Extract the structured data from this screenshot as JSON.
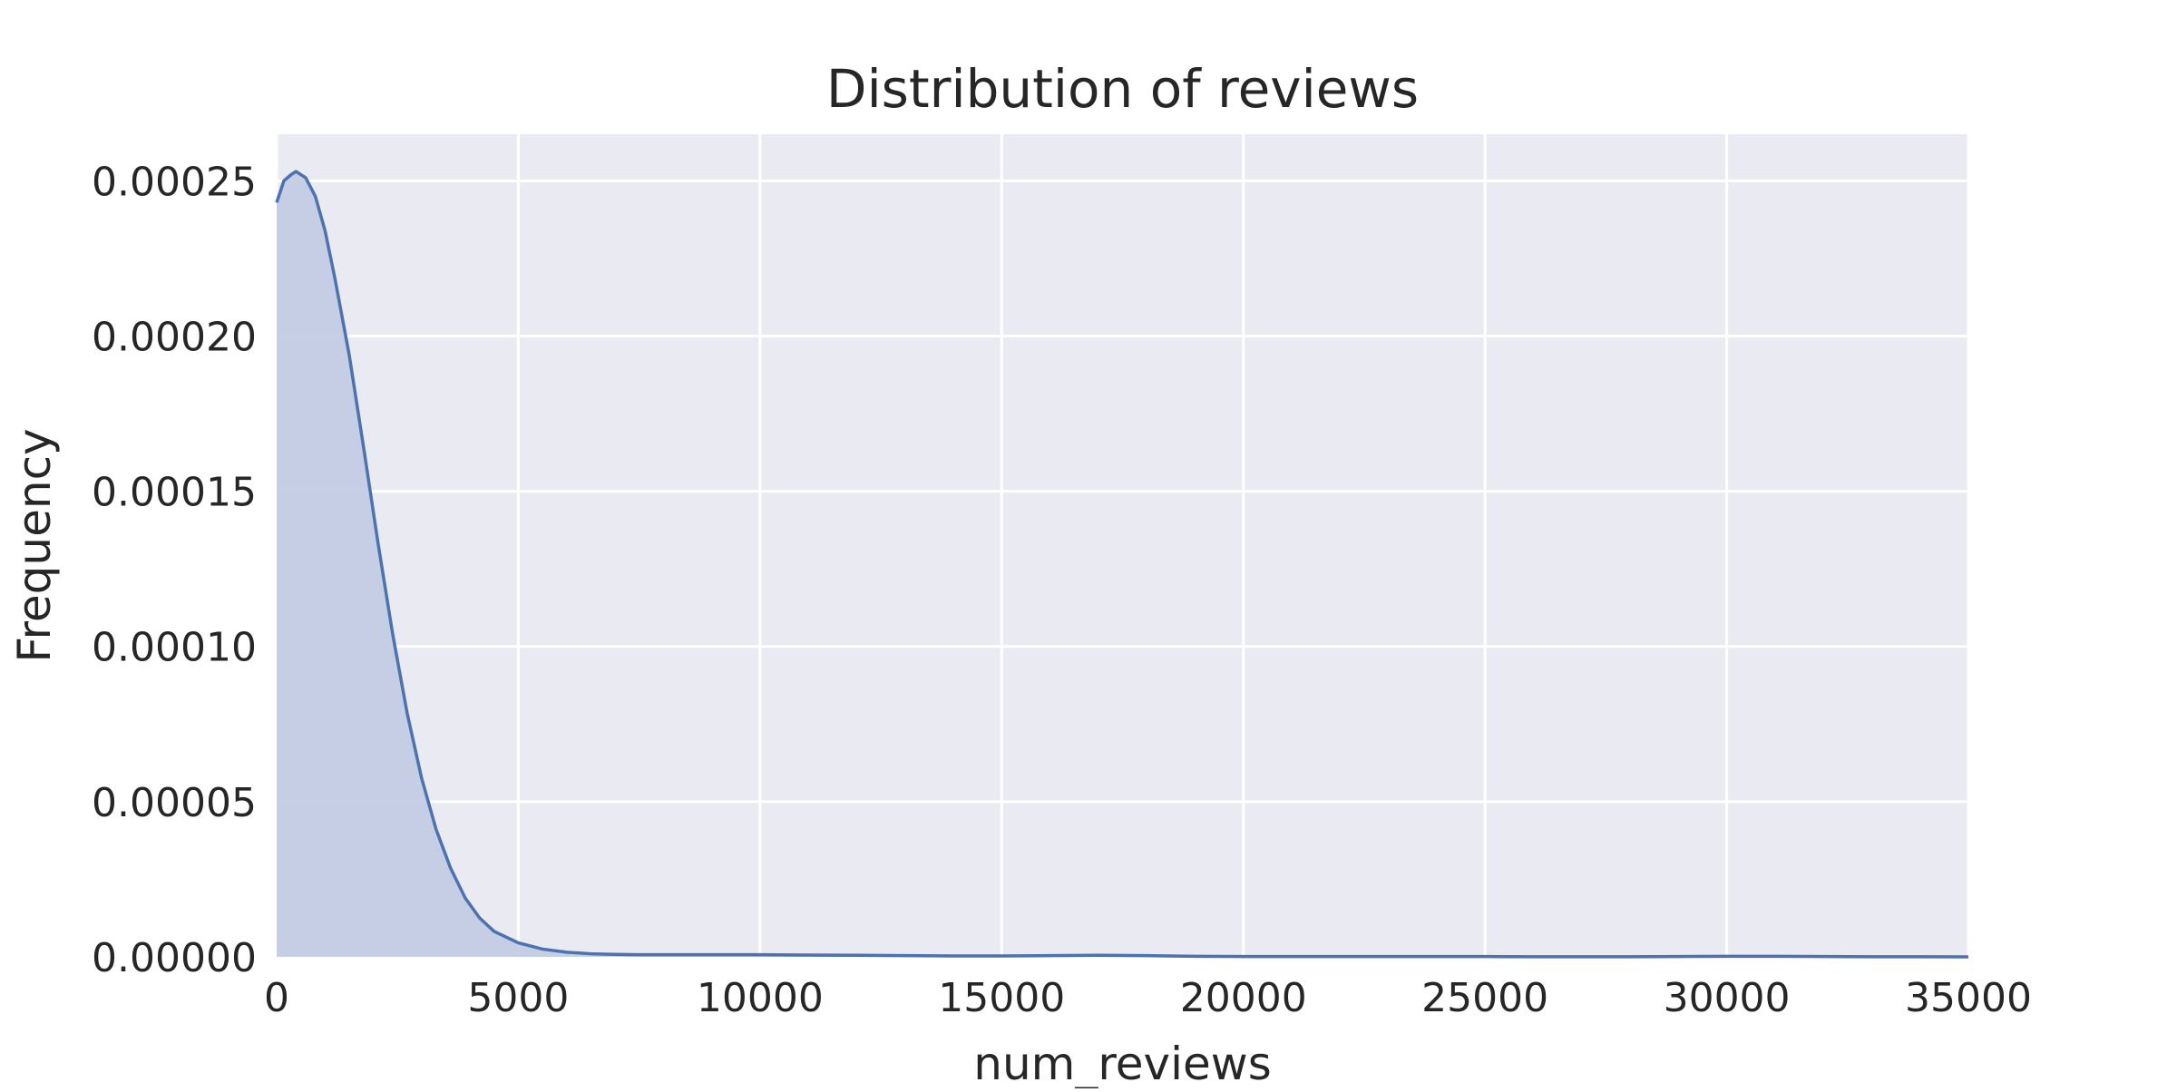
{
  "chart_data": {
    "type": "area",
    "title": "Distribution of reviews",
    "xlabel": "num_reviews",
    "ylabel": "Frequency",
    "xlim": [
      0,
      35000
    ],
    "ylim": [
      0,
      0.000265
    ],
    "xticks": [
      0,
      5000,
      10000,
      15000,
      20000,
      25000,
      30000,
      35000
    ],
    "xtick_labels": [
      "0",
      "5000",
      "10000",
      "15000",
      "20000",
      "25000",
      "30000",
      "35000"
    ],
    "yticks": [
      0,
      5e-05,
      0.0001,
      0.00015,
      0.0002,
      0.00025
    ],
    "ytick_labels": [
      "0.00000",
      "0.00005",
      "0.00010",
      "0.00015",
      "0.00020",
      "0.00025"
    ],
    "grid": true,
    "colors": {
      "plot_background": "#eaeaf2",
      "grid": "#ffffff",
      "line": "#4c72b0",
      "fill": "#c3cce3"
    },
    "series": [
      {
        "x": [
          0,
          150,
          300,
          400,
          600,
          800,
          1000,
          1200,
          1500,
          1800,
          2100,
          2400,
          2700,
          3000,
          3300,
          3600,
          3900,
          4200,
          4500,
          5000,
          5500,
          6000,
          6500,
          7000,
          7500,
          8000,
          9000,
          10000,
          11000,
          12000,
          13000,
          14000,
          15000,
          16000,
          17000,
          18000,
          19000,
          20000,
          21000,
          22000,
          23000,
          24000,
          25000,
          26000,
          27000,
          28000,
          29000,
          30000,
          31000,
          32000,
          33000,
          34000,
          35000
        ],
        "y": [
          0.000243,
          0.00025,
          0.000252,
          0.000253,
          0.000251,
          0.000245,
          0.000234,
          0.000219,
          0.000194,
          0.000164,
          0.000133,
          0.000104,
          7.85e-05,
          5.75e-05,
          4.1e-05,
          2.85e-05,
          1.9e-05,
          1.25e-05,
          8.2e-06,
          4.5e-06,
          2.5e-06,
          1.5e-06,
          1e-06,
          8e-07,
          7e-07,
          7e-07,
          7e-07,
          7e-07,
          6e-07,
          5e-07,
          4e-07,
          3e-07,
          3e-07,
          4e-07,
          5e-07,
          4e-07,
          2e-07,
          1e-07,
          1e-07,
          1e-07,
          1e-07,
          1e-07,
          1e-07,
          5e-08,
          3e-08,
          5e-08,
          1e-07,
          2e-07,
          2e-07,
          1e-07,
          5e-08,
          2e-08,
          0.0
        ]
      }
    ]
  }
}
